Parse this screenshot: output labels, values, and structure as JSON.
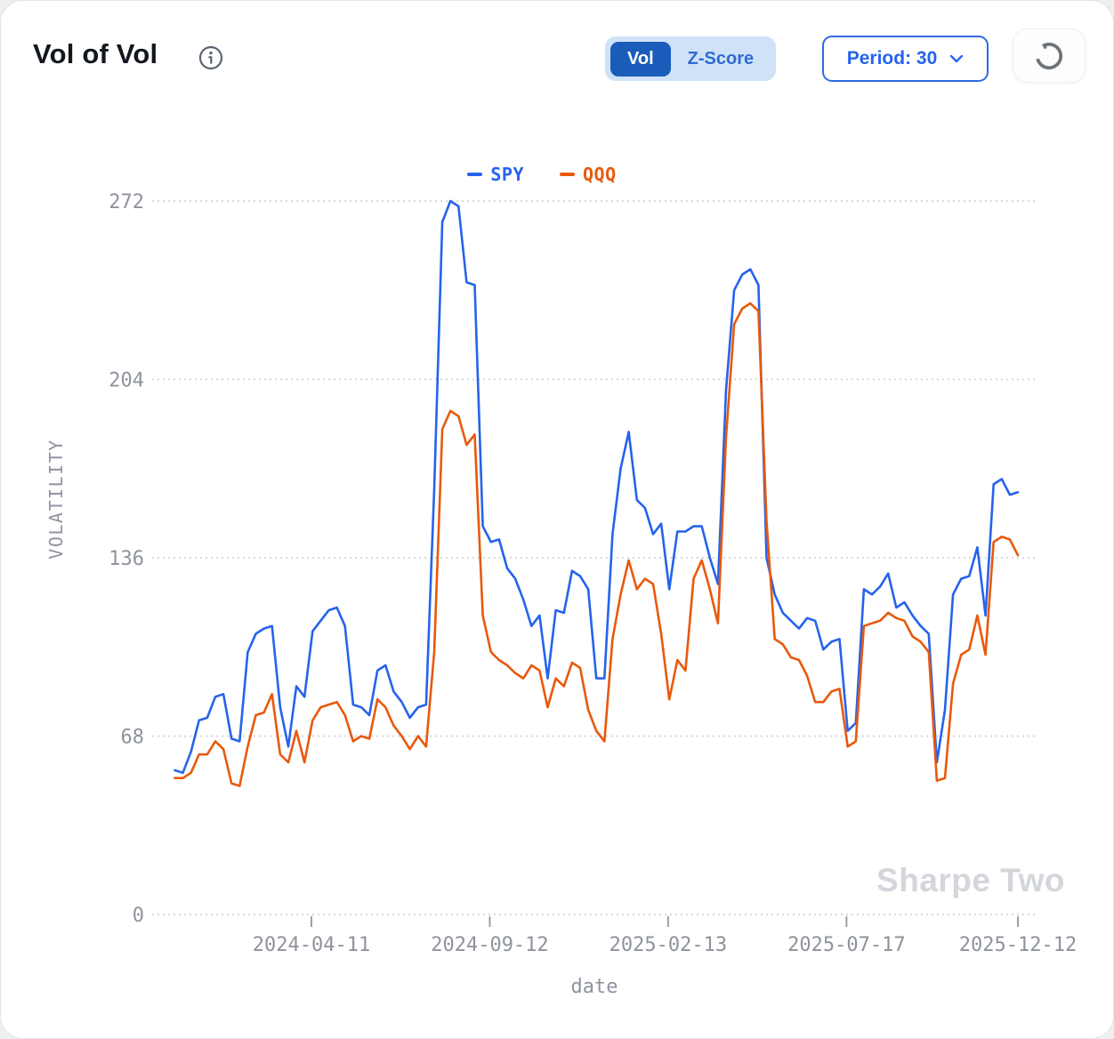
{
  "header": {
    "title": "Vol of Vol",
    "toggle": {
      "options": [
        "Vol",
        "Z-Score"
      ],
      "active": "Vol"
    },
    "period_label": "Period: 30",
    "refresh_icon": "spinner-icon",
    "info_icon": "info-circle-icon",
    "chevron_icon": "chevron-down-icon"
  },
  "colors": {
    "spy_line": "#2563eb",
    "qqq_line": "#e8590c",
    "toggle_active_bg": "#1a5cba",
    "toggle_group_bg": "#cfe2f7",
    "accent_blue": "#2563eb",
    "axis_text": "#8e939c",
    "gridline": "#cfd2d6",
    "watermark_text": "#d3d6db",
    "spinner_gray": "#6e7377"
  },
  "chart": {
    "watermark": "Sharpe Two",
    "xlabel": "date",
    "ylabel": "VOLATILITY"
  },
  "chart_data": {
    "type": "line",
    "title": "Vol of Vol",
    "xlabel": "date",
    "ylabel": "VOLATILITY",
    "ylim": [
      0,
      272
    ],
    "yticks": [
      0,
      68,
      136,
      204,
      272
    ],
    "xticks": [
      "2024-04-11",
      "2024-09-12",
      "2025-02-13",
      "2025-07-17",
      "2025-12-12"
    ],
    "grid": "horizontal-dotted",
    "legend_position": "top-center",
    "x": [
      "2023-12-15",
      "2023-12-22",
      "2023-12-29",
      "2024-01-05",
      "2024-01-12",
      "2024-01-19",
      "2024-01-26",
      "2024-02-02",
      "2024-02-09",
      "2024-02-16",
      "2024-02-23",
      "2024-03-01",
      "2024-03-08",
      "2024-03-15",
      "2024-03-22",
      "2024-03-29",
      "2024-04-05",
      "2024-04-12",
      "2024-04-19",
      "2024-04-26",
      "2024-05-03",
      "2024-05-10",
      "2024-05-17",
      "2024-05-24",
      "2024-05-31",
      "2024-06-07",
      "2024-06-14",
      "2024-06-21",
      "2024-06-28",
      "2024-07-05",
      "2024-07-12",
      "2024-07-19",
      "2024-07-26",
      "2024-08-02",
      "2024-08-09",
      "2024-08-16",
      "2024-08-23",
      "2024-08-30",
      "2024-09-06",
      "2024-09-13",
      "2024-09-20",
      "2024-09-27",
      "2024-10-04",
      "2024-10-11",
      "2024-10-18",
      "2024-10-25",
      "2024-11-01",
      "2024-11-08",
      "2024-11-15",
      "2024-11-22",
      "2024-11-29",
      "2024-12-06",
      "2024-12-13",
      "2024-12-20",
      "2024-12-27",
      "2025-01-03",
      "2025-01-10",
      "2025-01-17",
      "2025-01-24",
      "2025-01-31",
      "2025-02-07",
      "2025-02-14",
      "2025-02-21",
      "2025-02-28",
      "2025-03-07",
      "2025-03-14",
      "2025-03-21",
      "2025-03-28",
      "2025-04-04",
      "2025-04-11",
      "2025-04-18",
      "2025-04-25",
      "2025-05-02",
      "2025-05-09",
      "2025-05-16",
      "2025-05-23",
      "2025-05-30",
      "2025-06-06",
      "2025-06-13",
      "2025-06-20",
      "2025-06-27",
      "2025-07-04",
      "2025-07-11",
      "2025-07-18",
      "2025-07-25",
      "2025-08-01",
      "2025-08-08",
      "2025-08-15",
      "2025-08-22",
      "2025-08-29",
      "2025-09-05",
      "2025-09-12",
      "2025-09-19",
      "2025-09-26",
      "2025-10-03",
      "2025-10-10",
      "2025-10-17",
      "2025-10-24",
      "2025-10-31",
      "2025-11-07",
      "2025-11-14",
      "2025-11-21",
      "2025-11-28",
      "2025-12-05",
      "2025-12-12"
    ],
    "series": [
      {
        "name": "SPY",
        "color": "#2563eb",
        "values": [
          55,
          54,
          62,
          74,
          75,
          83,
          84,
          67,
          66,
          100,
          107,
          109,
          110,
          79,
          64,
          87,
          83,
          108,
          112,
          116,
          117,
          110,
          80,
          79,
          76,
          93,
          95,
          85,
          81,
          75,
          79,
          80,
          162,
          264,
          272,
          270,
          241,
          240,
          148,
          142,
          143,
          132,
          128,
          120,
          110,
          114,
          90,
          116,
          115,
          131,
          129,
          124,
          90,
          90,
          145,
          170,
          184,
          158,
          155,
          145,
          149,
          124,
          146,
          146,
          148,
          148,
          136,
          126,
          200,
          238,
          244,
          246,
          240,
          136,
          122,
          115,
          112,
          109,
          113,
          112,
          101,
          104,
          105,
          70,
          73,
          124,
          122,
          125,
          130,
          117,
          119,
          114,
          110,
          107,
          58,
          78,
          122,
          128,
          129,
          140,
          114,
          164,
          166,
          160,
          161
        ]
      },
      {
        "name": "QQQ",
        "color": "#e8590c",
        "values": [
          52,
          52,
          54,
          61,
          61,
          66,
          63,
          50,
          49,
          64,
          76,
          77,
          84,
          61,
          58,
          70,
          58,
          74,
          79,
          80,
          81,
          76,
          66,
          68,
          67,
          82,
          79,
          72,
          68,
          63,
          68,
          64,
          100,
          185,
          192,
          190,
          179,
          183,
          114,
          100,
          97,
          95,
          92,
          90,
          95,
          93,
          79,
          90,
          87,
          96,
          94,
          78,
          70,
          66,
          105,
          122,
          135,
          124,
          128,
          126,
          107,
          82,
          97,
          93,
          128,
          135,
          124,
          111,
          182,
          225,
          231,
          233,
          230,
          150,
          105,
          103,
          98,
          97,
          91,
          81,
          81,
          85,
          86,
          64,
          66,
          110,
          111,
          112,
          115,
          113,
          112,
          106,
          104,
          100,
          51,
          52,
          88,
          99,
          101,
          114,
          99,
          142,
          144,
          143,
          137
        ]
      }
    ]
  }
}
